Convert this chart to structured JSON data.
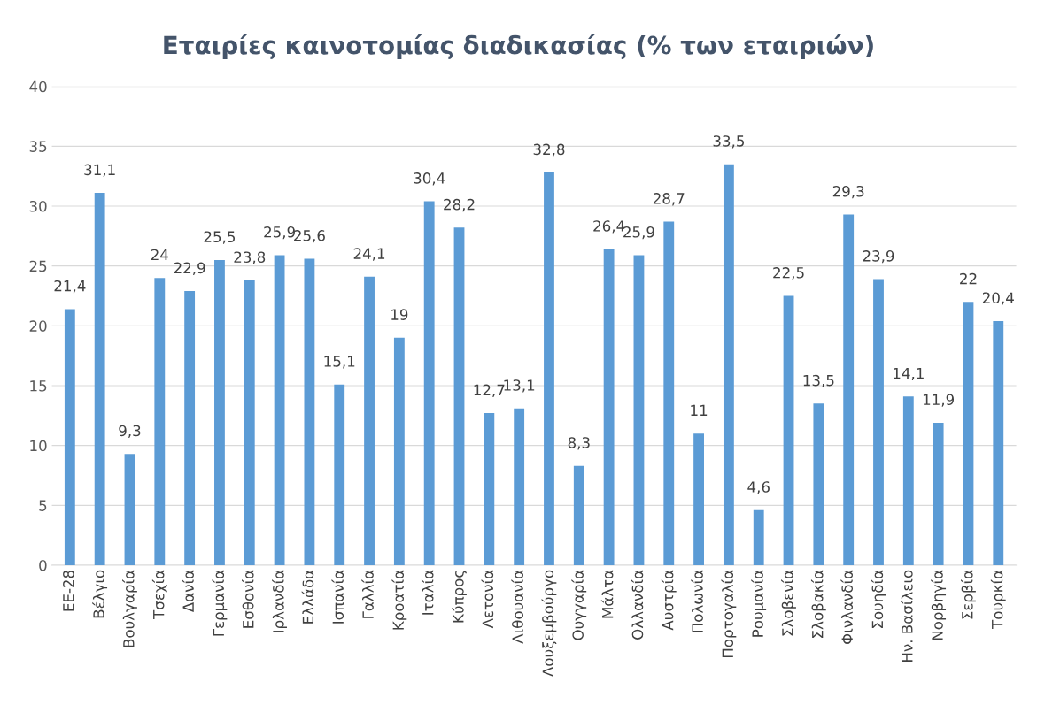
{
  "chart_data": {
    "type": "bar",
    "title": "Εταιρίες καινοτομίας διαδικασίας (% των εταιριών)",
    "categories": [
      "ΕΕ-28",
      "Βέλγιο",
      "Βουλγαρία",
      "Τσεχία",
      "Δανία",
      "Γερμανία",
      "Εσθονία",
      "Ιρλανδία",
      "Ελλάδα",
      "Ισπανία",
      "Γαλλία",
      "Κροατία",
      "Ιταλία",
      "Κύπρος",
      "Λετονία",
      "Λιθουανία",
      "Λουξεμβούργο",
      "Ουγγαρία",
      "Μάλτα",
      "Ολλανδία",
      "Αυστρία",
      "Πολωνία",
      "Πορτογαλία",
      "Ρουμανία",
      "Σλοβενία",
      "Σλοβακία",
      "Φινλανδία",
      "Σουηδία",
      "Ην. Βασίλειο",
      "Νορβηγία",
      "Σερβία",
      "Τουρκία"
    ],
    "values": [
      21.4,
      31.1,
      9.3,
      24,
      22.9,
      25.5,
      23.8,
      25.9,
      25.6,
      15.1,
      24.1,
      19,
      30.4,
      28.2,
      12.7,
      13.1,
      32.8,
      8.3,
      26.4,
      25.9,
      28.7,
      11,
      33.5,
      4.6,
      22.5,
      13.5,
      29.3,
      23.9,
      14.1,
      11.9,
      22,
      20.4
    ],
    "value_labels": [
      "21,4",
      "31,1",
      "9,3",
      "24",
      "22,9",
      "25,5",
      "23,8",
      "25,9",
      "25,6",
      "15,1",
      "24,1",
      "19",
      "30,4",
      "28,2",
      "12,7",
      "13,1",
      "32,8",
      "8,3",
      "26,4",
      "25,9",
      "28,7",
      "11",
      "33,5",
      "4,6",
      "22,5",
      "13,5",
      "29,3",
      "23,9",
      "14,1",
      "11,9",
      "22",
      "20,4"
    ],
    "color": "#5b9bd5",
    "ylim": [
      0,
      40
    ],
    "yticks": [
      0,
      5,
      10,
      15,
      20,
      25,
      30,
      35,
      40
    ],
    "grid": "y"
  }
}
